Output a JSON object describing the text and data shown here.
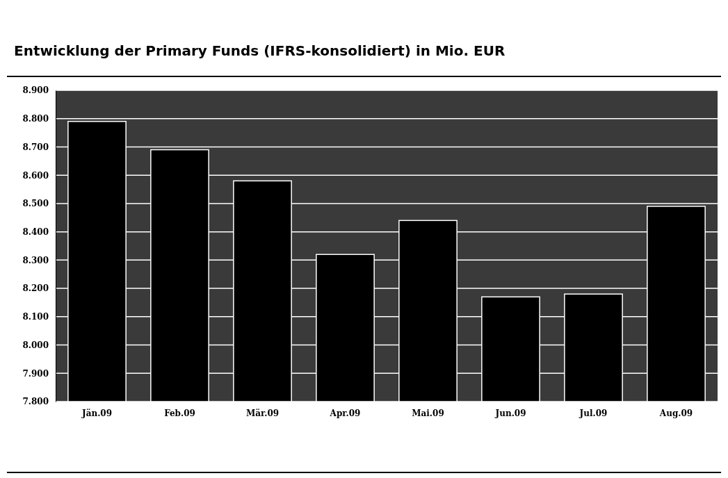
{
  "chart_data": {
    "type": "bar",
    "title": "Entwicklung der Primary Funds (IFRS-konsolidiert) in Mio. EUR",
    "categories": [
      "Jän.09",
      "Feb.09",
      "Mär.09",
      "Apr.09",
      "Mai.09",
      "Jun.09",
      "Jul.09",
      "Aug.09"
    ],
    "values": [
      8790,
      8690,
      8580,
      8320,
      8440,
      8170,
      8180,
      8490
    ],
    "color": "#000000",
    "ylim": [
      7800,
      8900
    ],
    "yticks": [
      {
        "value": 7800,
        "label": "7.800"
      },
      {
        "value": 7900,
        "label": "7.900"
      },
      {
        "value": 8000,
        "label": "8.000"
      },
      {
        "value": 8100,
        "label": "8.100"
      },
      {
        "value": 8200,
        "label": "8.200"
      },
      {
        "value": 8300,
        "label": "8.300"
      },
      {
        "value": 8400,
        "label": "8.400"
      },
      {
        "value": 8500,
        "label": "8.500"
      },
      {
        "value": 8600,
        "label": "8.600"
      },
      {
        "value": 8700,
        "label": "8.700"
      },
      {
        "value": 8800,
        "label": "8.800"
      },
      {
        "value": 8900,
        "label": "8.900"
      }
    ],
    "grid": "y"
  }
}
